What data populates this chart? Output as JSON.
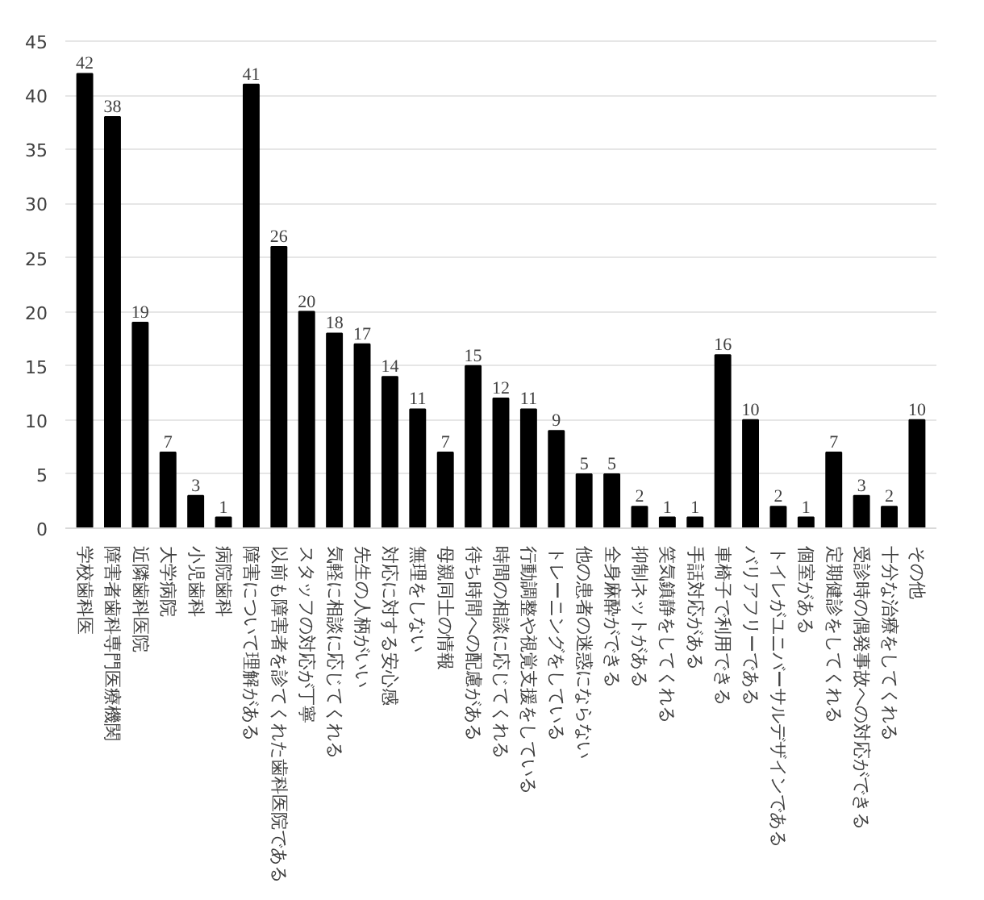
{
  "chart_data": {
    "type": "bar",
    "categories": [
      "学校歯科医",
      "障害者歯科専門医療機関",
      "近隣歯科医院",
      "大学病院",
      "小児歯科",
      "病院歯科",
      "障害について理解がある",
      "以前も障害者を診てくれた歯科医院である",
      "スタッフの対応が丁寧",
      "気軽に相談に応じてくれる",
      "先生の人柄がいい",
      "対応に対する安心感",
      "無理をしない",
      "母親同士の情報",
      "待ち時間への配慮がある",
      "時間の相談に応じてくれる",
      "行動調整や視覚支援をしている",
      "トレーニングをしている",
      "他の患者の迷惑にならない",
      "全身麻酔ができる",
      "抑制ネットがある",
      "笑気鎮静をしてくれる",
      "手話対応がある",
      "車椅子で利用できる",
      "バリアフリーである",
      "トイレがユニバーサルデザインである",
      "個室がある",
      "定期健診をしてくれる",
      "受診時の偶発事故への対応ができる",
      "十分な治療をしてくれる",
      "その他"
    ],
    "values": [
      42,
      38,
      19,
      7,
      3,
      1,
      41,
      26,
      20,
      18,
      17,
      14,
      11,
      7,
      15,
      12,
      11,
      9,
      5,
      5,
      2,
      1,
      1,
      16,
      10,
      2,
      1,
      7,
      3,
      2,
      10
    ],
    "color": "#000000",
    "ylim": [
      0,
      45
    ],
    "yticks": [
      0,
      5,
      10,
      15,
      20,
      25,
      30,
      35,
      40,
      45
    ],
    "grid": "y",
    "data_labels": true
  }
}
